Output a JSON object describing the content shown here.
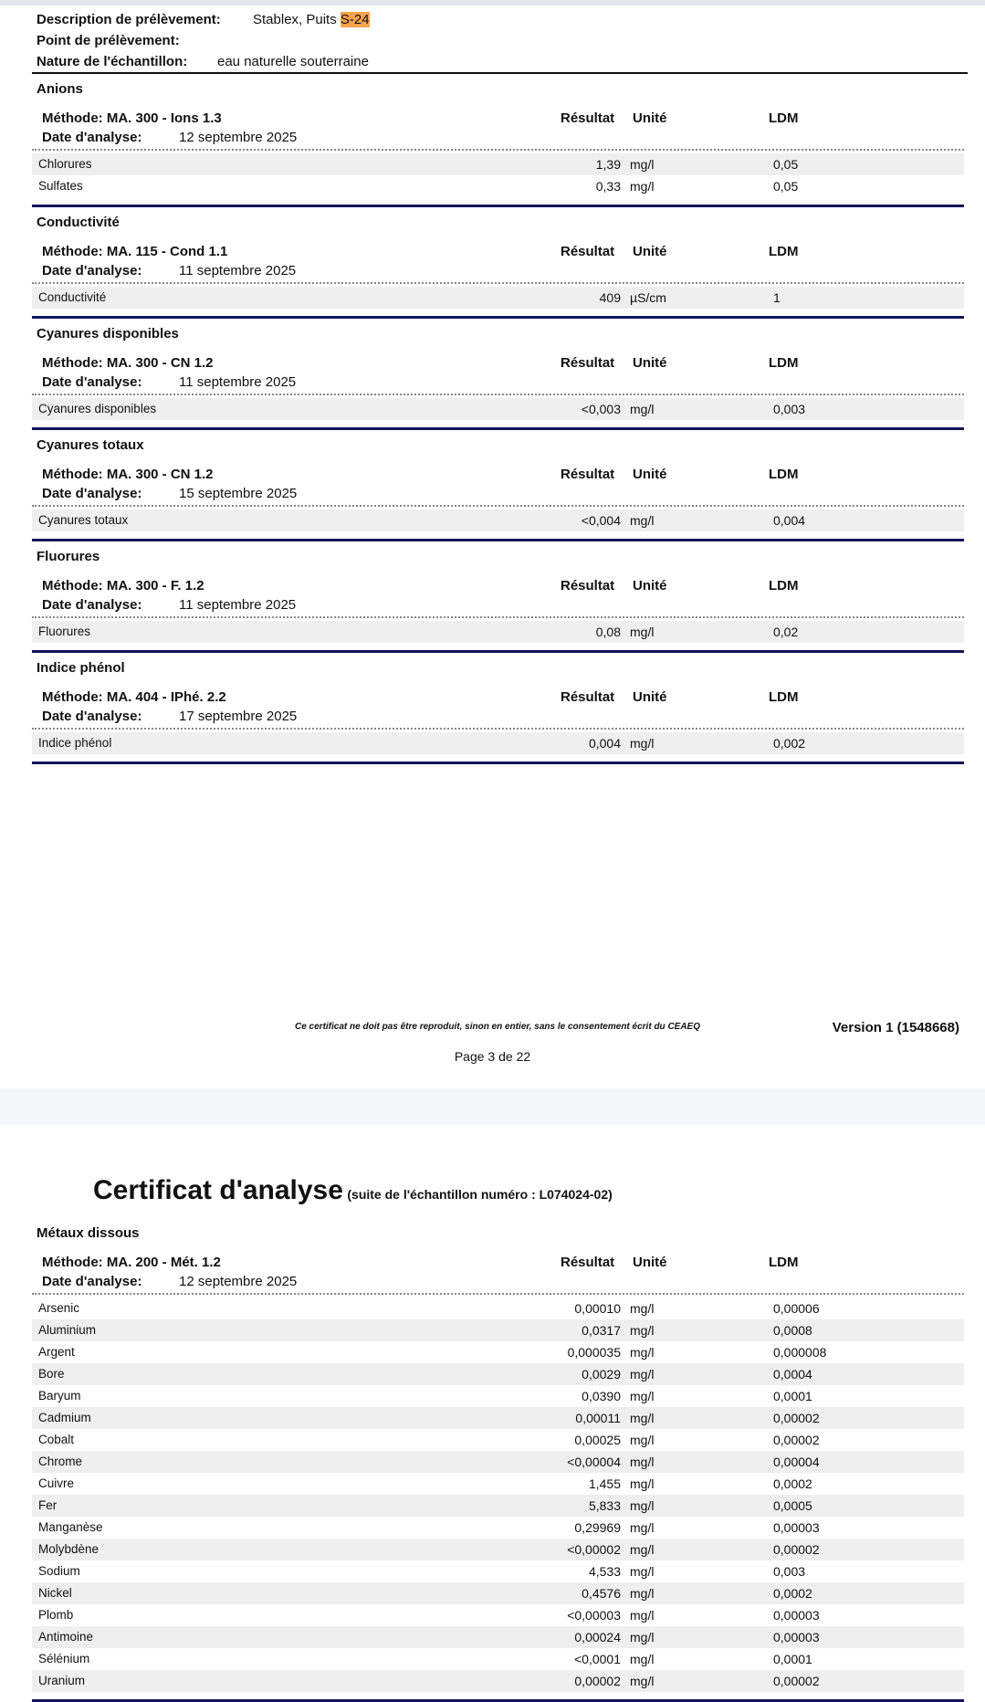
{
  "info": {
    "description_label": "Description de prélèvement:",
    "description_value": "Stablex, Puits ",
    "description_highlight": "S-24",
    "point_label": "Point de prélèvement:",
    "point_value": "",
    "nature_label": "Nature de l'échantillon:",
    "nature_value": "eau naturelle souterraine"
  },
  "headers": {
    "result": "Résultat",
    "unit": "Unité",
    "ldm": "LDM",
    "date_label": "Date d'analyse:"
  },
  "sections": [
    {
      "title": "Anions",
      "method": "Méthode: MA. 300 - Ions 1.3",
      "date": "12 septembre 2025",
      "rows": [
        {
          "name": "Chlorures",
          "result": "1,39",
          "unit": "mg/l",
          "ldm": "0,05"
        },
        {
          "name": "Sulfates",
          "result": "0,33",
          "unit": "mg/l",
          "ldm": "0,05"
        }
      ]
    },
    {
      "title": "Conductivité",
      "method": "Méthode: MA. 115 - Cond 1.1",
      "date": "11 septembre 2025",
      "rows": [
        {
          "name": "Conductivité",
          "result": "409",
          "unit": "µS/cm",
          "ldm": "1"
        }
      ]
    },
    {
      "title": "Cyanures disponibles",
      "method": "Méthode: MA. 300 - CN 1.2",
      "date": "11 septembre 2025",
      "rows": [
        {
          "name": "Cyanures disponibles",
          "result": "<0,003",
          "unit": "mg/l",
          "ldm": "0,003"
        }
      ]
    },
    {
      "title": "Cyanures totaux",
      "method": "Méthode: MA. 300 - CN 1.2",
      "date": "15 septembre 2025",
      "rows": [
        {
          "name": "Cyanures totaux",
          "result": "<0,004",
          "unit": "mg/l",
          "ldm": "0,004"
        }
      ]
    },
    {
      "title": "Fluorures",
      "method": "Méthode: MA. 300 - F. 1.2",
      "date": "11 septembre 2025",
      "rows": [
        {
          "name": "Fluorures",
          "result": "0,08",
          "unit": "mg/l",
          "ldm": "0,02"
        }
      ]
    },
    {
      "title": "Indice phénol",
      "method": "Méthode: MA. 404 - IPhé. 2.2",
      "date": "17 septembre 2025",
      "rows": [
        {
          "name": "Indice phénol",
          "result": "0,004",
          "unit": "mg/l",
          "ldm": "0,002"
        }
      ]
    }
  ],
  "footer": {
    "note": "Ce certificat ne doit pas être reproduit, sinon en entier, sans le consentement écrit du CEAEQ",
    "version": "Version 1 (1548668)",
    "page": "Page 3  de  22"
  },
  "page2": {
    "title": "Certificat d'analyse",
    "subtitle": "(suite de l'échantillon numéro : L074024-02)",
    "sections": [
      {
        "title": "Métaux dissous",
        "method": "Méthode: MA. 200 - Mét. 1.2",
        "date": "12 septembre 2025",
        "rows": [
          {
            "name": "Arsenic",
            "result": "0,00010",
            "unit": "mg/l",
            "ldm": "0,00006"
          },
          {
            "name": "Aluminium",
            "result": "0,0317",
            "unit": "mg/l",
            "ldm": "0,0008"
          },
          {
            "name": "Argent",
            "result": "0,000035",
            "unit": "mg/l",
            "ldm": "0,000008"
          },
          {
            "name": "Bore",
            "result": "0,0029",
            "unit": "mg/l",
            "ldm": "0,0004"
          },
          {
            "name": "Baryum",
            "result": "0,0390",
            "unit": "mg/l",
            "ldm": "0,0001"
          },
          {
            "name": "Cadmium",
            "result": "0,00011",
            "unit": "mg/l",
            "ldm": "0,00002"
          },
          {
            "name": "Cobalt",
            "result": "0,00025",
            "unit": "mg/l",
            "ldm": "0,00002"
          },
          {
            "name": "Chrome",
            "result": "<0,00004",
            "unit": "mg/l",
            "ldm": "0,00004"
          },
          {
            "name": "Cuivre",
            "result": "1,455",
            "unit": "mg/l",
            "ldm": "0,0002"
          },
          {
            "name": "Fer",
            "result": "5,833",
            "unit": "mg/l",
            "ldm": "0,0005"
          },
          {
            "name": "Manganèse",
            "result": "0,29969",
            "unit": "mg/l",
            "ldm": "0,00003"
          },
          {
            "name": "Molybdène",
            "result": "<0,00002",
            "unit": "mg/l",
            "ldm": "0,00002"
          },
          {
            "name": "Sodium",
            "result": "4,533",
            "unit": "mg/l",
            "ldm": "0,003"
          },
          {
            "name": "Nickel",
            "result": "0,4576",
            "unit": "mg/l",
            "ldm": "0,0002"
          },
          {
            "name": "Plomb",
            "result": "<0,00003",
            "unit": "mg/l",
            "ldm": "0,00003"
          },
          {
            "name": "Antimoine",
            "result": "0,00024",
            "unit": "mg/l",
            "ldm": "0,00003"
          },
          {
            "name": "Sélénium",
            "result": "<0,0001",
            "unit": "mg/l",
            "ldm": "0,0001"
          },
          {
            "name": "Uranium",
            "result": "0,00002",
            "unit": "mg/l",
            "ldm": "0,00002"
          }
        ]
      }
    ]
  },
  "colors": {
    "rule": "#14145a",
    "highlight": "#f7a34d",
    "row_shade": "#efefef"
  }
}
